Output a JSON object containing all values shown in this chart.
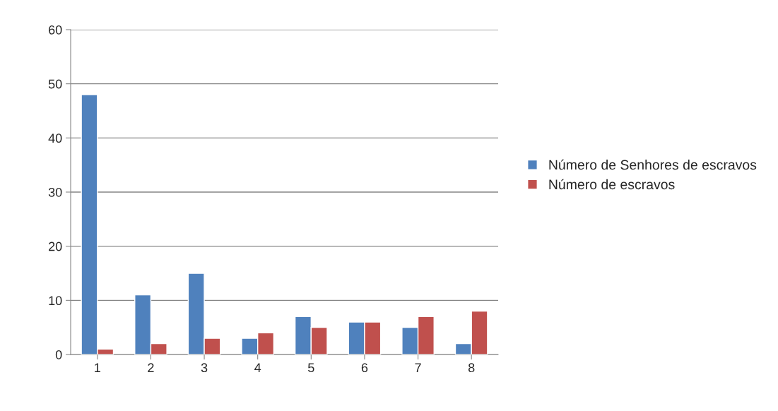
{
  "chart_data": {
    "type": "bar",
    "categories": [
      "1",
      "2",
      "3",
      "4",
      "5",
      "6",
      "7",
      "8"
    ],
    "series": [
      {
        "name": "Número de Senhores de escravos",
        "color": "#4f81bd",
        "values": [
          48,
          11,
          15,
          3,
          7,
          6,
          5,
          2
        ]
      },
      {
        "name": "Número de escravos",
        "color": "#c0504d",
        "values": [
          1,
          2,
          3,
          4,
          5,
          6,
          7,
          8
        ]
      }
    ],
    "ylim": [
      0,
      60
    ],
    "yticks": [
      0,
      10,
      20,
      30,
      40,
      50,
      60
    ],
    "grid": "y",
    "legend": "right"
  }
}
